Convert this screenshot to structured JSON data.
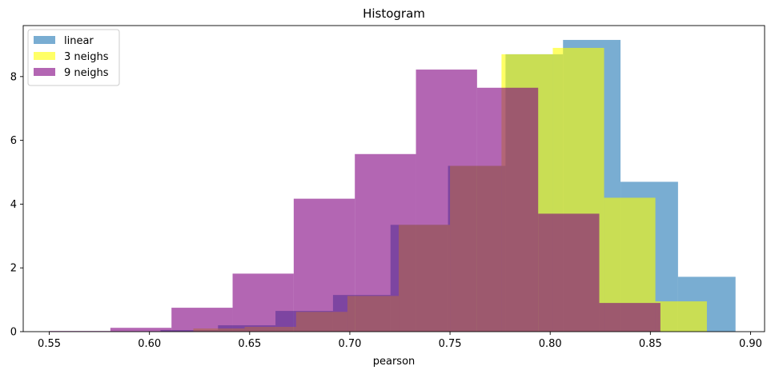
{
  "chart_data": {
    "type": "histogram",
    "title": "Histogram",
    "xlabel": "pearson",
    "ylabel": "",
    "xlim": [
      0.537,
      0.907
    ],
    "ylim": [
      0,
      9.6
    ],
    "xticks": [
      "0.55",
      "0.60",
      "0.65",
      "0.70",
      "0.75",
      "0.80",
      "0.85",
      "0.90"
    ],
    "yticks": [
      "0",
      "2",
      "4",
      "6",
      "8"
    ],
    "legend_position": "top-left",
    "series": [
      {
        "name": "linear",
        "color": "#1f77b4",
        "alpha": 0.6,
        "bin_edges": [
          0.6055,
          0.6342,
          0.6629,
          0.6916,
          0.7203,
          0.749,
          0.7777,
          0.8064,
          0.8351,
          0.8638,
          0.8925
        ],
        "values": [
          0.05,
          0.2,
          0.65,
          1.15,
          3.35,
          5.2,
          8.7,
          9.15,
          4.7,
          1.72
        ]
      },
      {
        "name": "3 neighs",
        "color": "#ffff00",
        "alpha": 0.6,
        "bin_edges": [
          0.6219,
          0.6475,
          0.6732,
          0.6988,
          0.7244,
          0.75,
          0.7757,
          0.8013,
          0.8269,
          0.8525,
          0.8782
        ],
        "values": [
          0.1,
          0.15,
          0.62,
          1.12,
          3.35,
          5.2,
          8.7,
          8.9,
          4.2,
          0.95
        ]
      },
      {
        "name": "9 neighs",
        "color": "#800080",
        "alpha": 0.6,
        "bin_edges": [
          0.55,
          0.5805,
          0.611,
          0.6415,
          0.672,
          0.7025,
          0.733,
          0.7635,
          0.794,
          0.8245,
          0.855
        ],
        "values": [
          0.02,
          0.12,
          0.75,
          1.82,
          4.17,
          5.57,
          8.22,
          7.65,
          3.7,
          0.9
        ]
      }
    ]
  }
}
